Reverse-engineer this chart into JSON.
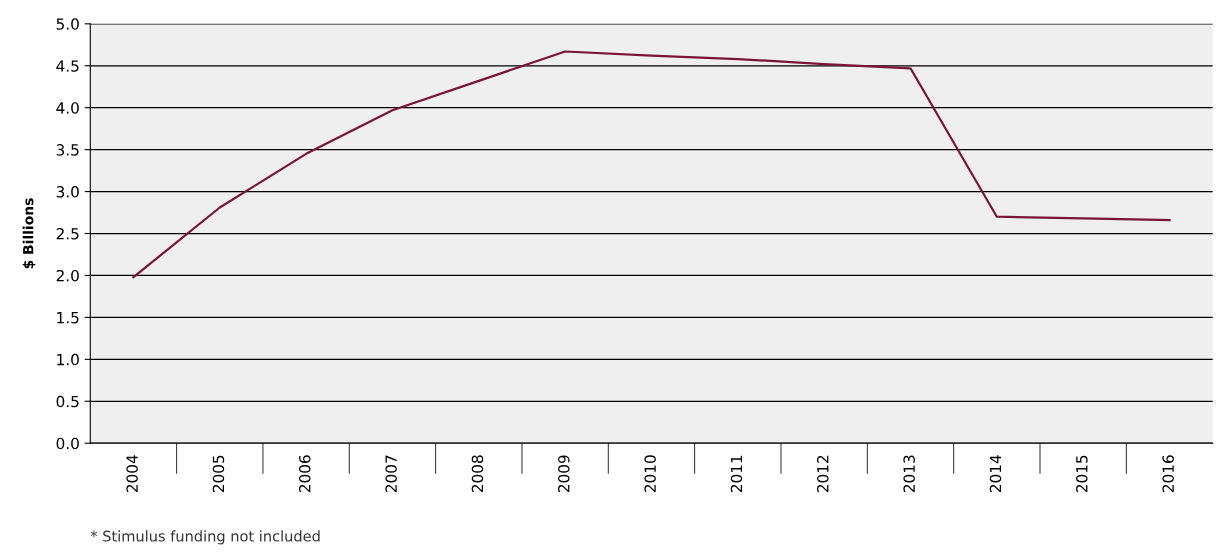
{
  "chart_data": {
    "type": "line",
    "ylabel": "$ Billions",
    "categories": [
      "2004",
      "2005",
      "2006",
      "2007",
      "2008",
      "2009",
      "2010",
      "2011",
      "2012",
      "2013",
      "2014",
      "2015",
      "2016"
    ],
    "series": [
      {
        "color": "#7b1535",
        "values": [
          1.98,
          2.81,
          3.45,
          3.97,
          4.32,
          4.67,
          4.62,
          4.58,
          4.52,
          4.47,
          2.7,
          2.68,
          2.66
        ]
      }
    ],
    "ylim": [
      0,
      5
    ],
    "yticks": [
      {
        "value": 0,
        "label": "0.0"
      },
      {
        "value": 0.5,
        "label": "0.5"
      },
      {
        "value": 1,
        "label": "1.0"
      },
      {
        "value": 1.5,
        "label": "1.5"
      },
      {
        "value": 2,
        "label": "2.0"
      },
      {
        "value": 2.5,
        "label": "2.5"
      },
      {
        "value": 3,
        "label": "3.0"
      },
      {
        "value": 3.5,
        "label": "3.5"
      },
      {
        "value": 4,
        "label": "4.0"
      },
      {
        "value": 4.5,
        "label": "4.5"
      },
      {
        "value": 5,
        "label": "5.0"
      }
    ],
    "grid": "y",
    "marker": "none",
    "line_style": "solid",
    "annotations": [
      "* Stimulus funding not included"
    ]
  }
}
